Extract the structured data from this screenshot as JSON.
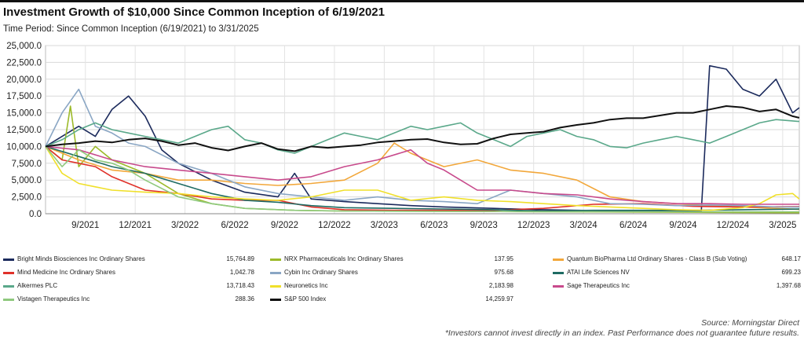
{
  "header": {
    "title": "Investment Growth of $10,000 Since Common Inception of 6/19/2021",
    "subtitle": "Time Period: Since Common Inception (6/19/2021) to 3/31/2025"
  },
  "chart_data": {
    "type": "line",
    "title": "Investment Growth of $10,000 Since Common Inception of 6/19/2021",
    "xlabel": "",
    "ylabel": "",
    "ylim": [
      0,
      25000
    ],
    "xlim": [
      0,
      45.4
    ],
    "grid": true,
    "y_ticks": [
      "0.0",
      "2,500.0",
      "5,000.0",
      "7,500.0",
      "10,000.0",
      "12,500.0",
      "15,000.0",
      "17,500.0",
      "20,000.0",
      "22,500.0",
      "25,000.0"
    ],
    "y_tick_values": [
      0,
      2500,
      5000,
      7500,
      10000,
      12500,
      15000,
      17500,
      20000,
      22500,
      25000
    ],
    "x_ticks": [
      "9/2021",
      "12/2021",
      "3/2022",
      "6/2022",
      "9/2022",
      "12/2022",
      "3/2023",
      "6/2023",
      "9/2023",
      "12/2023",
      "3/2024",
      "6/2024",
      "9/2024",
      "12/2024",
      "3/2025"
    ],
    "x_tick_values": [
      2.4,
      5.4,
      8.4,
      11.4,
      14.4,
      17.4,
      20.4,
      23.4,
      26.4,
      29.4,
      32.4,
      35.4,
      38.4,
      41.4,
      44.4
    ],
    "x_unit": "months since 6/19/2021",
    "series": [
      {
        "name": "Bright Minds Biosciences Inc Ordinary Shares",
        "final": "15,764.89",
        "color": "#1b2a5c",
        "x": [
          0,
          1,
          2,
          3,
          4,
          5,
          6,
          7,
          8,
          10,
          12,
          14,
          15,
          16,
          18,
          20,
          22,
          24,
          27,
          30,
          33,
          36,
          39.5,
          40,
          41,
          42,
          43,
          44,
          45,
          45.4
        ],
        "values": [
          10000,
          11500,
          13000,
          11500,
          15500,
          17500,
          14500,
          9500,
          7500,
          5000,
          3200,
          2500,
          6000,
          2200,
          1800,
          1500,
          1200,
          1000,
          800,
          600,
          450,
          400,
          380,
          22000,
          21500,
          18500,
          17500,
          20000,
          15000,
          15765
        ]
      },
      {
        "name": "NRX Pharmaceuticals Inc Ordinary Shares",
        "final": "137.95",
        "color": "#9cba2a",
        "x": [
          0,
          1,
          1.5,
          2,
          3,
          4,
          6,
          8,
          10,
          12,
          15,
          18,
          24,
          30,
          36,
          40,
          45.4
        ],
        "values": [
          10000,
          8000,
          16000,
          7000,
          10000,
          8000,
          6000,
          3000,
          1500,
          800,
          500,
          400,
          350,
          300,
          250,
          200,
          138
        ]
      },
      {
        "name": "Quantum BioPharma Ltd Ordinary Shares - Class B (Sub Voting)",
        "final": "648.17",
        "color": "#f2a73a",
        "x": [
          0,
          2,
          4,
          6,
          8,
          10,
          12,
          14,
          16,
          18,
          20,
          21,
          22,
          24,
          26,
          28,
          30,
          32,
          34,
          36,
          38,
          40,
          42,
          44,
          45.4
        ],
        "values": [
          10000,
          8000,
          6500,
          6000,
          5000,
          5000,
          4500,
          4200,
          4500,
          5000,
          7500,
          10500,
          9000,
          7000,
          8000,
          6500,
          6000,
          5000,
          2500,
          1800,
          1500,
          1200,
          1000,
          800,
          648
        ]
      },
      {
        "name": "Mind Medicine Inc Ordinary Shares",
        "final": "1,042.78",
        "color": "#e0312a",
        "x": [
          0,
          1,
          2,
          3,
          4,
          6,
          8,
          10,
          12,
          14,
          16,
          18,
          21,
          24,
          27,
          30,
          33,
          36,
          39,
          42,
          45.4
        ],
        "values": [
          10000,
          8000,
          7500,
          7000,
          5500,
          3500,
          3000,
          2200,
          2000,
          2000,
          1000,
          600,
          500,
          500,
          500,
          800,
          1400,
          1500,
          1100,
          1000,
          1043
        ]
      },
      {
        "name": "Cybin Inc Ordinary Shares",
        "final": "975.68",
        "color": "#8aa6c4",
        "x": [
          0,
          1,
          2,
          3,
          4,
          5,
          6,
          8,
          10,
          12,
          14,
          16,
          18,
          20,
          22,
          24,
          26,
          28,
          30,
          32,
          34,
          36,
          38,
          40,
          42,
          44,
          45.4
        ],
        "values": [
          10000,
          15000,
          18500,
          13000,
          12000,
          10500,
          10000,
          7500,
          6000,
          4000,
          3000,
          2500,
          2000,
          2500,
          2000,
          1800,
          1500,
          3500,
          3000,
          2500,
          1500,
          1400,
          1200,
          1300,
          1200,
          1000,
          976
        ]
      },
      {
        "name": "ATAI Life Sciences NV",
        "final": "699.23",
        "color": "#1e6b63",
        "x": [
          0,
          2,
          4,
          6,
          8,
          10,
          12,
          14,
          16,
          18,
          21,
          24,
          27,
          30,
          33,
          36,
          39,
          42,
          45.4
        ],
        "values": [
          10000,
          8500,
          7000,
          6000,
          4500,
          3000,
          2000,
          1700,
          1200,
          900,
          800,
          700,
          600,
          400,
          500,
          500,
          500,
          600,
          699
        ]
      },
      {
        "name": "Alkermes PLC",
        "final": "13,718.43",
        "color": "#5aa88a",
        "x": [
          0,
          1,
          2,
          3,
          4,
          5,
          6,
          7,
          8,
          9,
          10,
          11,
          12,
          13,
          14,
          15,
          16,
          17,
          18,
          19,
          20,
          21,
          22,
          23,
          24,
          25,
          26,
          27,
          28,
          29,
          30,
          31,
          32,
          33,
          34,
          35,
          36,
          37,
          38,
          39,
          40,
          41,
          42,
          43,
          44,
          45,
          45.4
        ],
        "values": [
          10000,
          11000,
          12500,
          13500,
          12500,
          12000,
          11500,
          11000,
          10500,
          11500,
          12500,
          13000,
          11000,
          10500,
          9500,
          9000,
          10000,
          11000,
          12000,
          11500,
          11000,
          12000,
          13000,
          12500,
          13000,
          13500,
          12000,
          11000,
          10000,
          11500,
          12000,
          12500,
          11500,
          11000,
          10000,
          9800,
          10500,
          11000,
          11500,
          11000,
          10500,
          11500,
          12500,
          13500,
          14000,
          13800,
          13718
        ]
      },
      {
        "name": "Neuronetics Inc",
        "final": "2,183.98",
        "color": "#f0e02a",
        "x": [
          0,
          1,
          2,
          3,
          4,
          6,
          8,
          10,
          12,
          14,
          16,
          18,
          20,
          22,
          24,
          26,
          28,
          30,
          32,
          34,
          36,
          38,
          40,
          42,
          43,
          44,
          45,
          45.4
        ],
        "values": [
          10000,
          6000,
          4500,
          4000,
          3500,
          3200,
          3000,
          2500,
          2200,
          2000,
          2500,
          3500,
          3500,
          2000,
          2500,
          2000,
          1800,
          1500,
          1200,
          1000,
          800,
          600,
          500,
          900,
          1500,
          2800,
          3000,
          2184
        ]
      },
      {
        "name": "Sage Therapeutics Inc",
        "final": "1,397.68",
        "color": "#c84a8c",
        "x": [
          0,
          2,
          4,
          6,
          8,
          10,
          12,
          14,
          16,
          18,
          20,
          22,
          23,
          24,
          25,
          26,
          28,
          30,
          32,
          34,
          36,
          38,
          40,
          42,
          44,
          45.4
        ],
        "values": [
          10000,
          9500,
          8000,
          7000,
          6500,
          6000,
          5500,
          5000,
          5500,
          7000,
          8000,
          9500,
          7500,
          6500,
          5000,
          3500,
          3500,
          3000,
          2800,
          2200,
          1800,
          1500,
          1500,
          1400,
          1400,
          1398
        ]
      },
      {
        "name": "Vistagen Therapeutics Inc",
        "final": "288.36",
        "color": "#8fc97e",
        "x": [
          0,
          1,
          2,
          3,
          4,
          5,
          6,
          8,
          10,
          12,
          15,
          18,
          24,
          30,
          36,
          40,
          45.4
        ],
        "values": [
          10000,
          7000,
          9500,
          8000,
          7500,
          6500,
          5000,
          2500,
          1500,
          800,
          500,
          400,
          350,
          300,
          300,
          280,
          288
        ]
      },
      {
        "name": "S&P 500 Index",
        "final": "14,259.97",
        "color": "#111111",
        "x": [
          0,
          1,
          2,
          3,
          4,
          5,
          6,
          7,
          8,
          9,
          10,
          11,
          12,
          13,
          14,
          15,
          16,
          17,
          18,
          19,
          20,
          21,
          22,
          23,
          24,
          25,
          26,
          27,
          28,
          29,
          30,
          31,
          32,
          33,
          34,
          35,
          36,
          37,
          38,
          39,
          40,
          41,
          42,
          43,
          44,
          45,
          45.4
        ],
        "values": [
          10000,
          10300,
          10500,
          10800,
          10600,
          11000,
          11200,
          10800,
          10200,
          10500,
          9800,
          9400,
          10000,
          10500,
          9600,
          9300,
          10000,
          9800,
          10000,
          10200,
          10600,
          10800,
          11000,
          11100,
          10600,
          10300,
          10400,
          11200,
          11800,
          12000,
          12200,
          12800,
          13200,
          13500,
          14000,
          14200,
          14200,
          14600,
          15000,
          15000,
          15500,
          16000,
          15800,
          15200,
          15500,
          14500,
          14260
        ]
      }
    ]
  },
  "footer": {
    "source": "Source: Morningstar Direct",
    "disclaimer": "*Investors cannot invest directly in an index. Past Performance does not guarantee future results."
  }
}
